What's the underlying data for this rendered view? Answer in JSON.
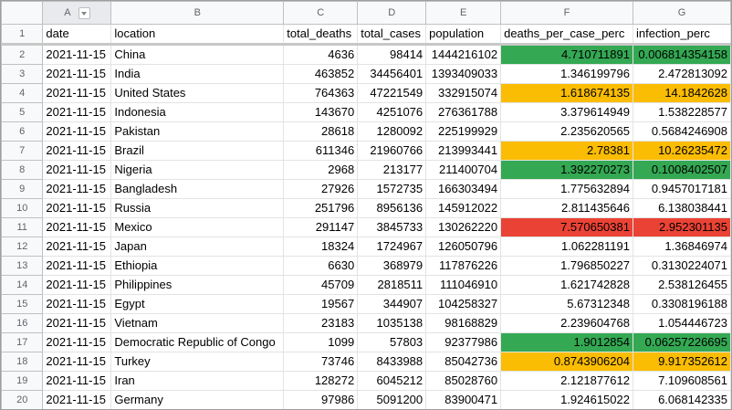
{
  "colors": {
    "green": "#34a853",
    "yellow": "#fbbc04",
    "red": "#ea4335"
  },
  "column_letters": [
    "A",
    "B",
    "C",
    "D",
    "E",
    "F",
    "G"
  ],
  "filter_icon": "dropdown-arrow-icon",
  "headers": [
    "date",
    "location",
    "total_deaths",
    "total_cases",
    "population",
    "deaths_per_case_perc",
    "infection_perc"
  ],
  "rows": [
    {
      "n": "2",
      "date": "2021-11-15",
      "location": "China",
      "total_deaths": "4636",
      "total_cases": "98414",
      "population": "1444216102",
      "dpc": "4.710711891",
      "inf": "0.006814354158",
      "dpc_color": "green",
      "inf_color": "green"
    },
    {
      "n": "3",
      "date": "2021-11-15",
      "location": "India",
      "total_deaths": "463852",
      "total_cases": "34456401",
      "population": "1393409033",
      "dpc": "1.346199796",
      "inf": "2.472813092",
      "dpc_color": "",
      "inf_color": ""
    },
    {
      "n": "4",
      "date": "2021-11-15",
      "location": "United States",
      "total_deaths": "764363",
      "total_cases": "47221549",
      "population": "332915074",
      "dpc": "1.618674135",
      "inf": "14.1842628",
      "dpc_color": "yellow",
      "inf_color": "yellow"
    },
    {
      "n": "5",
      "date": "2021-11-15",
      "location": "Indonesia",
      "total_deaths": "143670",
      "total_cases": "4251076",
      "population": "276361788",
      "dpc": "3.379614949",
      "inf": "1.538228577",
      "dpc_color": "",
      "inf_color": ""
    },
    {
      "n": "6",
      "date": "2021-11-15",
      "location": "Pakistan",
      "total_deaths": "28618",
      "total_cases": "1280092",
      "population": "225199929",
      "dpc": "2.235620565",
      "inf": "0.5684246908",
      "dpc_color": "",
      "inf_color": ""
    },
    {
      "n": "7",
      "date": "2021-11-15",
      "location": "Brazil",
      "total_deaths": "611346",
      "total_cases": "21960766",
      "population": "213993441",
      "dpc": "2.78381",
      "inf": "10.26235472",
      "dpc_color": "yellow",
      "inf_color": "yellow"
    },
    {
      "n": "8",
      "date": "2021-11-15",
      "location": "Nigeria",
      "total_deaths": "2968",
      "total_cases": "213177",
      "population": "211400704",
      "dpc": "1.392270273",
      "inf": "0.1008402507",
      "dpc_color": "green",
      "inf_color": "green"
    },
    {
      "n": "9",
      "date": "2021-11-15",
      "location": "Bangladesh",
      "total_deaths": "27926",
      "total_cases": "1572735",
      "population": "166303494",
      "dpc": "1.775632894",
      "inf": "0.9457017181",
      "dpc_color": "",
      "inf_color": ""
    },
    {
      "n": "10",
      "date": "2021-11-15",
      "location": "Russia",
      "total_deaths": "251796",
      "total_cases": "8956136",
      "population": "145912022",
      "dpc": "2.811435646",
      "inf": "6.138038441",
      "dpc_color": "",
      "inf_color": ""
    },
    {
      "n": "11",
      "date": "2021-11-15",
      "location": "Mexico",
      "total_deaths": "291147",
      "total_cases": "3845733",
      "population": "130262220",
      "dpc": "7.570650381",
      "inf": "2.952301135",
      "dpc_color": "red",
      "inf_color": "red"
    },
    {
      "n": "12",
      "date": "2021-11-15",
      "location": "Japan",
      "total_deaths": "18324",
      "total_cases": "1724967",
      "population": "126050796",
      "dpc": "1.062281191",
      "inf": "1.36846974",
      "dpc_color": "",
      "inf_color": ""
    },
    {
      "n": "13",
      "date": "2021-11-15",
      "location": "Ethiopia",
      "total_deaths": "6630",
      "total_cases": "368979",
      "population": "117876226",
      "dpc": "1.796850227",
      "inf": "0.3130224071",
      "dpc_color": "",
      "inf_color": ""
    },
    {
      "n": "14",
      "date": "2021-11-15",
      "location": "Philippines",
      "total_deaths": "45709",
      "total_cases": "2818511",
      "population": "111046910",
      "dpc": "1.621742828",
      "inf": "2.538126455",
      "dpc_color": "",
      "inf_color": ""
    },
    {
      "n": "15",
      "date": "2021-11-15",
      "location": "Egypt",
      "total_deaths": "19567",
      "total_cases": "344907",
      "population": "104258327",
      "dpc": "5.67312348",
      "inf": "0.3308196188",
      "dpc_color": "",
      "inf_color": ""
    },
    {
      "n": "16",
      "date": "2021-11-15",
      "location": "Vietnam",
      "total_deaths": "23183",
      "total_cases": "1035138",
      "population": "98168829",
      "dpc": "2.239604768",
      "inf": "1.054446723",
      "dpc_color": "",
      "inf_color": ""
    },
    {
      "n": "17",
      "date": "2021-11-15",
      "location": "Democratic Republic of Congo",
      "total_deaths": "1099",
      "total_cases": "57803",
      "population": "92377986",
      "dpc": "1.9012854",
      "inf": "0.06257226695",
      "dpc_color": "green",
      "inf_color": "green"
    },
    {
      "n": "18",
      "date": "2021-11-15",
      "location": "Turkey",
      "total_deaths": "73746",
      "total_cases": "8433988",
      "population": "85042736",
      "dpc": "0.8743906204",
      "inf": "9.917352612",
      "dpc_color": "yellow",
      "inf_color": "yellow"
    },
    {
      "n": "19",
      "date": "2021-11-15",
      "location": "Iran",
      "total_deaths": "128272",
      "total_cases": "6045212",
      "population": "85028760",
      "dpc": "2.121877612",
      "inf": "7.109608561",
      "dpc_color": "",
      "inf_color": ""
    },
    {
      "n": "20",
      "date": "2021-11-15",
      "location": "Germany",
      "total_deaths": "97986",
      "total_cases": "5091200",
      "population": "83900471",
      "dpc": "1.924615022",
      "inf": "6.068142335",
      "dpc_color": "",
      "inf_color": ""
    }
  ]
}
